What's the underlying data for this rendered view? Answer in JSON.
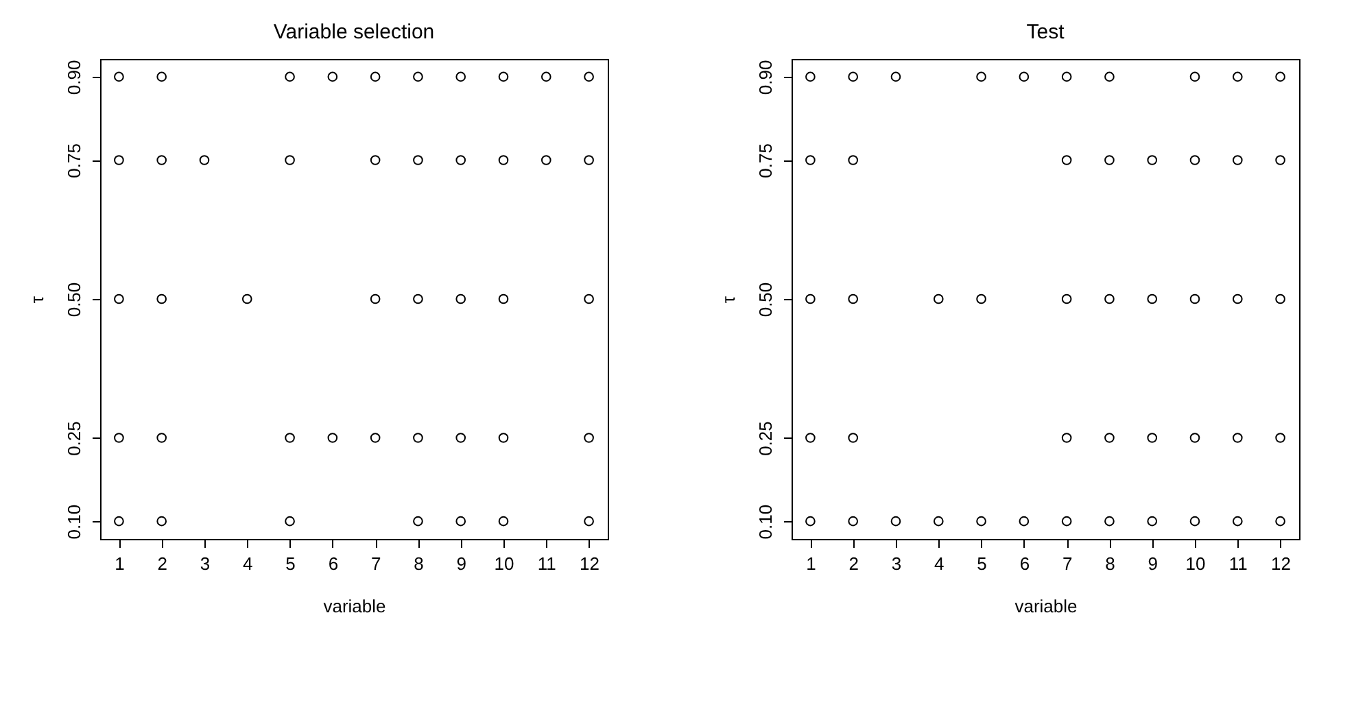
{
  "chart_data": [
    {
      "type": "scatter",
      "title": "Variable selection",
      "xlabel": "variable",
      "ylabel": "τ",
      "marker": "circle",
      "grid": false,
      "xlim": [
        0.56,
        12.44
      ],
      "ylim": [
        0.068,
        0.932
      ],
      "xticks": [
        1,
        2,
        3,
        4,
        5,
        6,
        7,
        8,
        9,
        10,
        11,
        12
      ],
      "yticks": [
        {
          "value": 0.1,
          "label": "0.10"
        },
        {
          "value": 0.25,
          "label": "0.25"
        },
        {
          "value": 0.5,
          "label": "0.50"
        },
        {
          "value": 0.75,
          "label": "0.75"
        },
        {
          "value": 0.9,
          "label": "0.90"
        }
      ],
      "x": [
        1,
        2,
        5,
        6,
        7,
        8,
        9,
        10,
        11,
        12,
        1,
        2,
        3,
        5,
        7,
        8,
        9,
        10,
        11,
        12,
        1,
        2,
        4,
        7,
        8,
        9,
        10,
        12,
        1,
        2,
        5,
        6,
        7,
        8,
        9,
        10,
        12,
        1,
        2,
        5,
        8,
        9,
        10,
        12
      ],
      "values": [
        0.9,
        0.9,
        0.9,
        0.9,
        0.9,
        0.9,
        0.9,
        0.9,
        0.9,
        0.9,
        0.75,
        0.75,
        0.75,
        0.75,
        0.75,
        0.75,
        0.75,
        0.75,
        0.75,
        0.75,
        0.5,
        0.5,
        0.5,
        0.5,
        0.5,
        0.5,
        0.5,
        0.5,
        0.25,
        0.25,
        0.25,
        0.25,
        0.25,
        0.25,
        0.25,
        0.25,
        0.25,
        0.1,
        0.1,
        0.1,
        0.1,
        0.1,
        0.1,
        0.1
      ]
    },
    {
      "type": "scatter",
      "title": "Test",
      "xlabel": "variable",
      "ylabel": "τ",
      "marker": "circle",
      "grid": false,
      "xlim": [
        0.56,
        12.44
      ],
      "ylim": [
        0.068,
        0.932
      ],
      "xticks": [
        1,
        2,
        3,
        4,
        5,
        6,
        7,
        8,
        9,
        10,
        11,
        12
      ],
      "yticks": [
        {
          "value": 0.1,
          "label": "0.10"
        },
        {
          "value": 0.25,
          "label": "0.25"
        },
        {
          "value": 0.5,
          "label": "0.50"
        },
        {
          "value": 0.75,
          "label": "0.75"
        },
        {
          "value": 0.9,
          "label": "0.90"
        }
      ],
      "x": [
        1,
        2,
        3,
        5,
        6,
        7,
        8,
        10,
        11,
        12,
        1,
        2,
        7,
        8,
        9,
        10,
        11,
        12,
        1,
        2,
        4,
        5,
        7,
        8,
        9,
        10,
        11,
        12,
        1,
        2,
        7,
        8,
        9,
        10,
        11,
        12,
        1,
        2,
        3,
        4,
        5,
        6,
        7,
        8,
        9,
        10,
        11,
        12
      ],
      "values": [
        0.9,
        0.9,
        0.9,
        0.9,
        0.9,
        0.9,
        0.9,
        0.9,
        0.9,
        0.9,
        0.75,
        0.75,
        0.75,
        0.75,
        0.75,
        0.75,
        0.75,
        0.75,
        0.5,
        0.5,
        0.5,
        0.5,
        0.5,
        0.5,
        0.5,
        0.5,
        0.5,
        0.5,
        0.25,
        0.25,
        0.25,
        0.25,
        0.25,
        0.25,
        0.25,
        0.25,
        0.1,
        0.1,
        0.1,
        0.1,
        0.1,
        0.1,
        0.1,
        0.1,
        0.1,
        0.1,
        0.1,
        0.1
      ]
    }
  ]
}
